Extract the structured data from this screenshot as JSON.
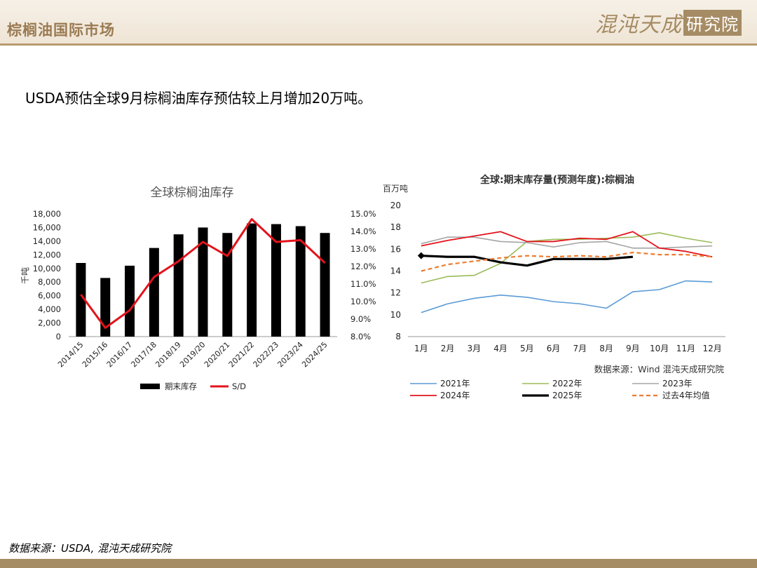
{
  "header": {
    "title": "棕榈油国际市场",
    "logo_left": "混沌天成",
    "logo_box": "研究院"
  },
  "headline": "USDA预估全球9月棕榈油库存预估较上月增加20万吨。",
  "footer": {
    "source": "数据来源：USDA, 混沌天成研究院"
  },
  "colors": {
    "header_bg": "#f3ebdf",
    "accent": "#a68c64",
    "bar": "#000000",
    "sd_line": "#e3131b",
    "s2021": "#5b9bd5",
    "s2022": "#9bbb59",
    "s2023": "#a5a5a5",
    "s2024": "#e3131b",
    "s2025": "#000000",
    "avg": "#ed7d31"
  },
  "chart_data": [
    {
      "type": "bar",
      "title": "全球棕榈油库存",
      "ylabel": "千吨",
      "ylim": [
        0,
        18000
      ],
      "y_ticks": [
        "0",
        "2,000",
        "4,000",
        "6,000",
        "8,000",
        "10,000",
        "12,000",
        "14,000",
        "16,000",
        "18,000"
      ],
      "y2lim": [
        8.0,
        15.0
      ],
      "y2_ticks": [
        "8.0%",
        "9.0%",
        "10.0%",
        "11.0%",
        "12.0%",
        "13.0%",
        "14.0%",
        "15.0%"
      ],
      "categories": [
        "2014/15",
        "2015/16",
        "2016/17",
        "2017/18",
        "2018/19",
        "2019/20",
        "2020/21",
        "2021/22",
        "2022/23",
        "2023/24",
        "2024/25"
      ],
      "series": [
        {
          "name": "期末库存",
          "type": "bar",
          "axis": "left",
          "values": [
            10800,
            8600,
            10400,
            13000,
            15000,
            16000,
            15200,
            16600,
            16500,
            16200,
            15200
          ]
        },
        {
          "name": "S/D",
          "type": "line",
          "axis": "right",
          "values": [
            10.4,
            8.5,
            9.5,
            11.4,
            12.3,
            13.4,
            12.6,
            14.7,
            13.4,
            13.5,
            12.2
          ]
        }
      ],
      "legend_position": "bottom",
      "grid": false
    },
    {
      "type": "line",
      "title": "全球:期末库存量(预测年度):棕榈油",
      "unit_label": "百万吨",
      "ylim": [
        8,
        20
      ],
      "y_ticks": [
        "8",
        "10",
        "12",
        "14",
        "16",
        "18",
        "20"
      ],
      "categories": [
        "1月",
        "2月",
        "3月",
        "4月",
        "5月",
        "6月",
        "7月",
        "8月",
        "9月",
        "10月",
        "11月",
        "12月"
      ],
      "series": [
        {
          "name": "2021年",
          "values": [
            10.2,
            11.0,
            11.5,
            11.8,
            11.6,
            11.2,
            11.0,
            10.6,
            12.1,
            12.3,
            13.1,
            13.0
          ]
        },
        {
          "name": "2022年",
          "values": [
            12.9,
            13.5,
            13.6,
            14.7,
            16.7,
            16.9,
            16.9,
            17.0,
            17.1,
            17.5,
            17.0,
            16.6
          ]
        },
        {
          "name": "2023年",
          "values": [
            16.5,
            17.1,
            17.1,
            16.7,
            16.6,
            16.2,
            16.6,
            16.7,
            16.1,
            16.1,
            16.2,
            16.3
          ]
        },
        {
          "name": "2024年",
          "values": [
            16.3,
            16.8,
            17.2,
            17.6,
            16.7,
            16.7,
            17.0,
            16.9,
            17.6,
            16.1,
            15.8,
            15.3
          ]
        },
        {
          "name": "2025年",
          "values": [
            15.4,
            15.3,
            15.3,
            14.8,
            14.5,
            15.1,
            15.1,
            15.1,
            15.3,
            null,
            null,
            null
          ]
        },
        {
          "name": "过去4年均值",
          "dashed": true,
          "values": [
            14.0,
            14.6,
            14.9,
            15.2,
            15.4,
            15.3,
            15.4,
            15.3,
            15.7,
            15.5,
            15.5,
            15.3
          ]
        }
      ],
      "source": "数据来源：Wind  混沌天成研究院",
      "legend_position": "bottom",
      "grid": false
    }
  ]
}
